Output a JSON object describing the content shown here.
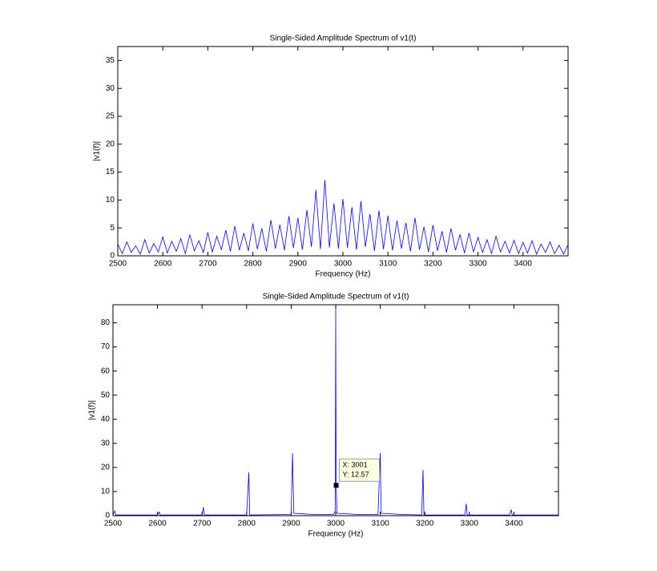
{
  "chart_data": [
    {
      "type": "line",
      "title": "Single-Sided Amplitude Spectrum of v1(t)",
      "xlabel": "Frequency (Hz)",
      "ylabel": "|v1(f)|",
      "color": "#0000ff",
      "x": [
        2500,
        2510,
        2520,
        2530,
        2540,
        2550,
        2560,
        2570,
        2580,
        2590,
        2600,
        2610,
        2620,
        2630,
        2640,
        2650,
        2660,
        2670,
        2680,
        2690,
        2700,
        2710,
        2720,
        2730,
        2740,
        2750,
        2760,
        2770,
        2780,
        2790,
        2800,
        2810,
        2820,
        2830,
        2840,
        2850,
        2860,
        2870,
        2880,
        2890,
        2900,
        2910,
        2920,
        2930,
        2940,
        2950,
        2960,
        2970,
        2980,
        2990,
        3000,
        3010,
        3020,
        3030,
        3040,
        3050,
        3060,
        3070,
        3080,
        3090,
        3100,
        3110,
        3120,
        3130,
        3140,
        3150,
        3160,
        3170,
        3180,
        3190,
        3200,
        3210,
        3220,
        3230,
        3240,
        3250,
        3260,
        3270,
        3280,
        3290,
        3300,
        3310,
        3320,
        3330,
        3340,
        3350,
        3360,
        3370,
        3380,
        3390,
        3400,
        3410,
        3420,
        3430,
        3440,
        3450,
        3460,
        3470,
        3480,
        3490,
        3500
      ],
      "values": [
        2.1,
        0.4,
        2.5,
        0.6,
        1.8,
        0.3,
        2.9,
        0.5,
        2.2,
        0.7,
        3.4,
        0.5,
        2.6,
        0.8,
        3.1,
        0.4,
        3.8,
        0.9,
        2.7,
        0.6,
        4.2,
        0.7,
        3.5,
        1.1,
        4.6,
        0.8,
        5.3,
        1.0,
        4.1,
        0.9,
        5.8,
        1.2,
        4.9,
        0.8,
        6.4,
        1.3,
        5.6,
        1.0,
        7.1,
        1.4,
        6.8,
        1.1,
        8.2,
        1.6,
        11.8,
        1.2,
        13.6,
        1.5,
        9.4,
        1.3,
        10.2,
        1.4,
        8.7,
        1.1,
        9.8,
        1.6,
        7.5,
        0.9,
        8.1,
        1.2,
        7.2,
        1.0,
        6.3,
        1.3,
        5.9,
        0.8,
        6.8,
        1.1,
        5.2,
        0.7,
        5.5,
        0.9,
        4.4,
        0.6,
        4.9,
        1.0,
        3.8,
        0.5,
        4.1,
        0.7,
        3.3,
        0.6,
        2.9,
        0.4,
        3.5,
        0.7,
        2.6,
        0.5,
        2.8,
        0.4,
        2.4,
        0.5,
        2.7,
        0.3,
        2.1,
        0.6,
        2.5,
        0.4,
        1.9,
        0.3,
        2.0
      ],
      "xlim": [
        2500,
        3500
      ],
      "ylim": [
        0,
        37.5
      ],
      "xticks": [
        2500,
        2600,
        2700,
        2800,
        2900,
        3000,
        3100,
        3200,
        3300,
        3400
      ],
      "yticks": [
        0,
        5,
        10,
        15,
        20,
        25,
        30,
        35
      ]
    },
    {
      "type": "line",
      "title": "Single-Sided Amplitude Spectrum of v1(t)",
      "xlabel": "Frequency (Hz)",
      "ylabel": "|v1(f)|",
      "color": "#0000ff",
      "x": [
        2500,
        2504,
        2506,
        2600,
        2604,
        2606,
        2700,
        2703,
        2705,
        2800,
        2805,
        2807,
        2900,
        2903,
        2906,
        2950,
        2995,
        2999,
        3000,
        3001,
        3003,
        3050,
        3095,
        3100,
        3102,
        3150,
        3193,
        3196,
        3198,
        3290,
        3293,
        3295,
        3390,
        3394,
        3396,
        3500
      ],
      "values": [
        0.3,
        2,
        0.3,
        0.3,
        1.5,
        0.3,
        0.3,
        3.5,
        0.3,
        0.3,
        18,
        0.3,
        0.5,
        26,
        1,
        0.5,
        0.5,
        2,
        86,
        12.57,
        1,
        0.5,
        0.5,
        26,
        1,
        0.5,
        0.3,
        19,
        0.3,
        0.3,
        5,
        0.3,
        0.3,
        2.5,
        0.3,
        0.3
      ],
      "xlim": [
        2500,
        3500
      ],
      "ylim": [
        0,
        87.5
      ],
      "xticks": [
        2500,
        2600,
        2700,
        2800,
        2900,
        3000,
        3100,
        3200,
        3300,
        3400
      ],
      "yticks": [
        0,
        10,
        20,
        30,
        40,
        50,
        60,
        70,
        80
      ],
      "datatip": {
        "x": 3001,
        "y": 12.57,
        "lines": [
          "X: 3001",
          "Y: 12.57"
        ]
      }
    }
  ]
}
